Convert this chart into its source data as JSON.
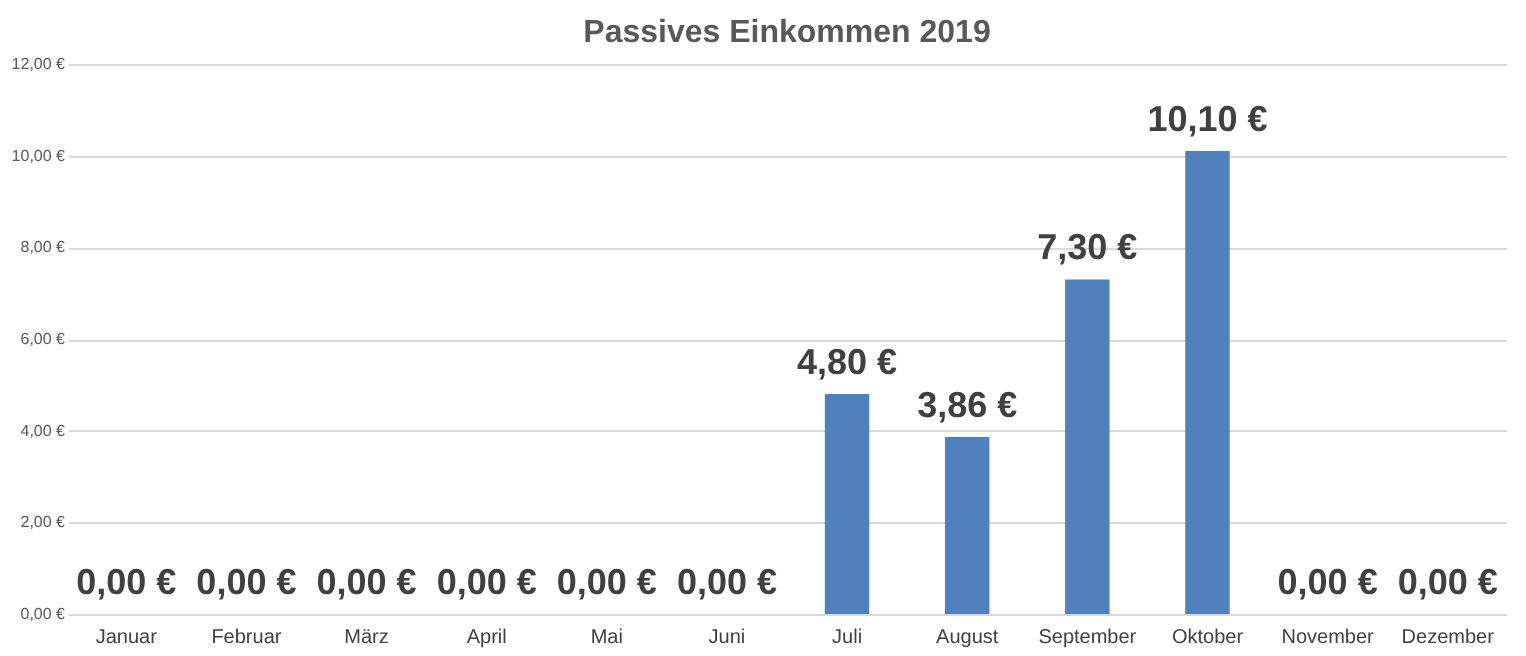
{
  "chart_data": {
    "type": "bar",
    "title": "Passives Einkommen 2019",
    "categories": [
      "Januar",
      "Februar",
      "März",
      "April",
      "Mai",
      "Juni",
      "Juli",
      "August",
      "September",
      "Oktober",
      "November",
      "Dezember"
    ],
    "values": [
      0,
      0,
      0,
      0,
      0,
      0,
      4.8,
      3.86,
      7.3,
      10.1,
      0,
      0
    ],
    "value_labels": [
      "0,00 €",
      "0,00 €",
      "0,00 €",
      "0,00 €",
      "0,00 €",
      "0,00 €",
      "4,80 €",
      "3,86 €",
      "7,30 €",
      "10,10 €",
      "0,00 €",
      "0,00 €"
    ],
    "color": "#4f81bd",
    "ylim": [
      0,
      12
    ],
    "yticks": [
      {
        "value": 0,
        "label": "0,00 €"
      },
      {
        "value": 2,
        "label": "2,00 €"
      },
      {
        "value": 4,
        "label": "4,00 €"
      },
      {
        "value": 6,
        "label": "6,00 €"
      },
      {
        "value": 8,
        "label": "8,00 €"
      },
      {
        "value": 10,
        "label": "10,00 €"
      },
      {
        "value": 12,
        "label": "12,00 €"
      }
    ],
    "grid": "y"
  }
}
